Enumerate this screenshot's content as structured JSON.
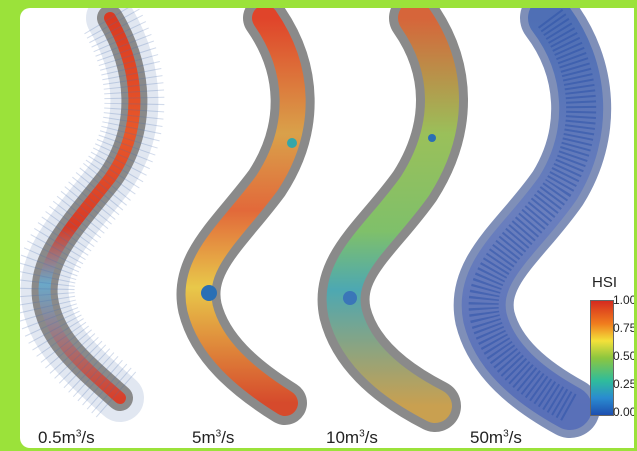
{
  "panels": [
    {
      "id": "p1",
      "flow_value": "0.5",
      "flow_unit": "m³/s",
      "dominant_habitat": "high-red"
    },
    {
      "id": "p2",
      "flow_value": "5",
      "flow_unit": "m³/s",
      "dominant_habitat": "red-yellow"
    },
    {
      "id": "p3",
      "flow_value": "10",
      "flow_unit": "m³/s",
      "dominant_habitat": "mixed"
    },
    {
      "id": "p4",
      "flow_value": "50",
      "flow_unit": "m³/s",
      "dominant_habitat": "low-blue"
    }
  ],
  "legend": {
    "title": "HSI",
    "ticks": [
      "1.00",
      "0.75",
      "0.50",
      "0.25",
      "0.00"
    ],
    "colors": [
      "#d62b1f",
      "#f3e13a",
      "#8cc63f",
      "#2fbc9c",
      "#1d4fb0"
    ]
  },
  "colors": {
    "background_green": "#9be23a",
    "grid_gray": "#8a8a8a",
    "mesh_line": "#4a6fb0"
  }
}
